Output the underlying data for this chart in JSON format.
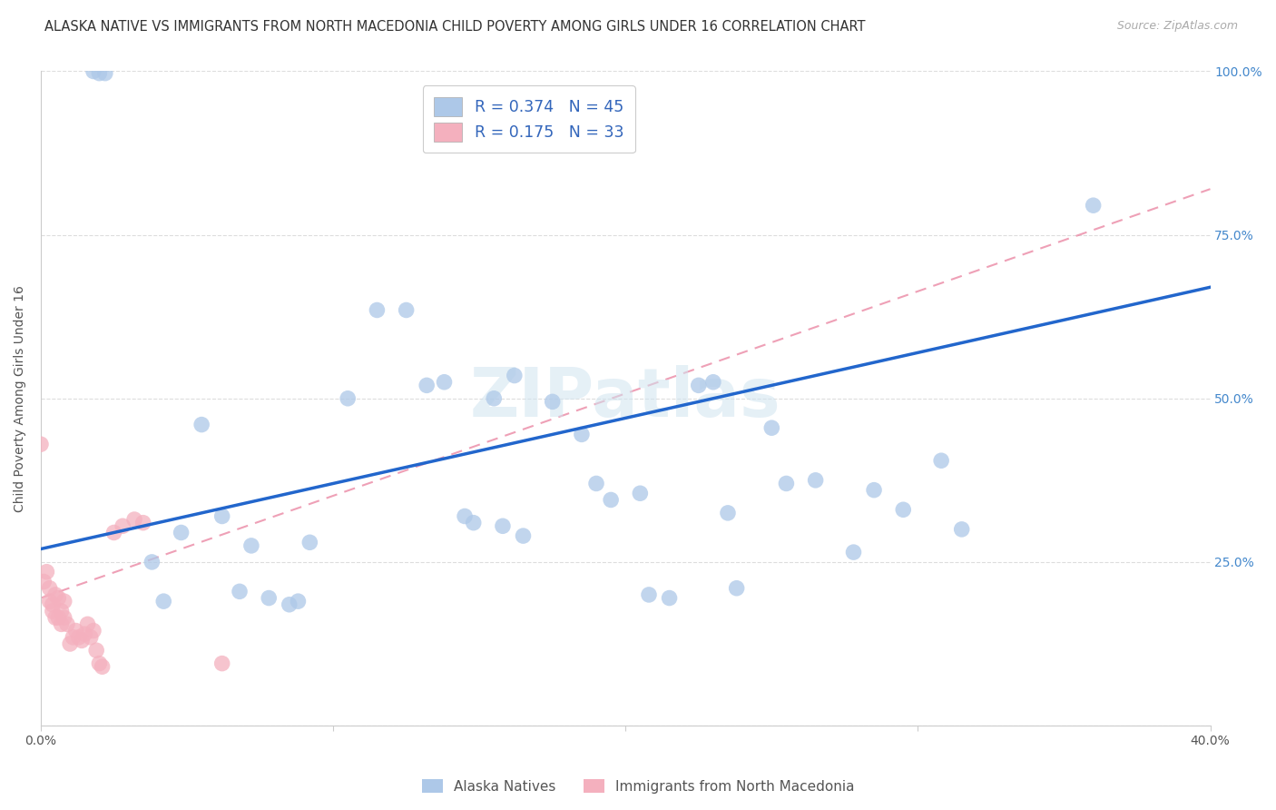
{
  "title": "ALASKA NATIVE VS IMMIGRANTS FROM NORTH MACEDONIA CHILD POVERTY AMONG GIRLS UNDER 16 CORRELATION CHART",
  "source": "Source: ZipAtlas.com",
  "ylabel": "Child Poverty Among Girls Under 16",
  "xlim": [
    0,
    0.4
  ],
  "ylim": [
    0,
    1.0
  ],
  "xticks": [
    0.0,
    0.1,
    0.2,
    0.3,
    0.4
  ],
  "yticks": [
    0.0,
    0.25,
    0.5,
    0.75,
    1.0
  ],
  "blue_color": "#adc8e8",
  "blue_line_color": "#2266cc",
  "pink_color": "#f4b0be",
  "pink_line_color": "#e87898",
  "watermark": "ZIPatlas",
  "blue_scatter_x": [
    0.018,
    0.02,
    0.022,
    0.055,
    0.062,
    0.072,
    0.078,
    0.085,
    0.092,
    0.105,
    0.115,
    0.125,
    0.132,
    0.138,
    0.145,
    0.155,
    0.162,
    0.165,
    0.175,
    0.185,
    0.19,
    0.195,
    0.205,
    0.215,
    0.225,
    0.23,
    0.235,
    0.25,
    0.255,
    0.265,
    0.285,
    0.295,
    0.315,
    0.36,
    0.038,
    0.042,
    0.048,
    0.068,
    0.088,
    0.148,
    0.158,
    0.208,
    0.238,
    0.278,
    0.308
  ],
  "blue_scatter_y": [
    1.0,
    0.997,
    0.997,
    0.46,
    0.32,
    0.275,
    0.195,
    0.185,
    0.28,
    0.5,
    0.635,
    0.635,
    0.52,
    0.525,
    0.32,
    0.5,
    0.535,
    0.29,
    0.495,
    0.445,
    0.37,
    0.345,
    0.355,
    0.195,
    0.52,
    0.525,
    0.325,
    0.455,
    0.37,
    0.375,
    0.36,
    0.33,
    0.3,
    0.795,
    0.25,
    0.19,
    0.295,
    0.205,
    0.19,
    0.31,
    0.305,
    0.2,
    0.21,
    0.265,
    0.405
  ],
  "pink_scatter_x": [
    0.0,
    0.001,
    0.002,
    0.003,
    0.003,
    0.004,
    0.004,
    0.005,
    0.005,
    0.006,
    0.006,
    0.007,
    0.007,
    0.008,
    0.008,
    0.009,
    0.01,
    0.011,
    0.012,
    0.013,
    0.014,
    0.015,
    0.016,
    0.017,
    0.018,
    0.019,
    0.02,
    0.021,
    0.025,
    0.028,
    0.032,
    0.035,
    0.062
  ],
  "pink_scatter_y": [
    0.43,
    0.22,
    0.235,
    0.19,
    0.21,
    0.185,
    0.175,
    0.2,
    0.165,
    0.195,
    0.165,
    0.175,
    0.155,
    0.19,
    0.165,
    0.155,
    0.125,
    0.135,
    0.145,
    0.135,
    0.13,
    0.14,
    0.155,
    0.135,
    0.145,
    0.115,
    0.095,
    0.09,
    0.295,
    0.305,
    0.315,
    0.31,
    0.095
  ],
  "blue_line_x": [
    0.0,
    0.4
  ],
  "blue_line_y": [
    0.27,
    0.67
  ],
  "pink_line_x": [
    0.0,
    0.4
  ],
  "pink_line_y": [
    0.195,
    0.82
  ],
  "background_color": "#ffffff",
  "grid_color": "#dddddd",
  "title_fontsize": 10.5,
  "axis_fontsize": 10,
  "tick_fontsize": 10,
  "legend_fontsize": 12.5
}
